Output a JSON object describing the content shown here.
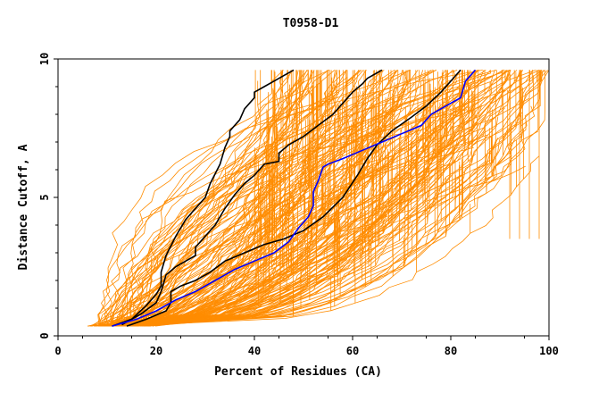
{
  "chart_data": {
    "type": "line",
    "title": "T0958-D1",
    "xlabel": "Percent of Residues (CA)",
    "ylabel": "Distance Cutoff, A",
    "xlim": [
      0,
      100
    ],
    "ylim": [
      0,
      10
    ],
    "x_ticks": [
      "0",
      "20",
      "40",
      "60",
      "80",
      "100"
    ],
    "y_ticks": [
      "0",
      "5",
      "10"
    ],
    "grid": false,
    "background_series_color": "#ff8c00",
    "background_series_count": 180,
    "series": [
      {
        "color": "#000000",
        "x": [
          11,
          15,
          18,
          20,
          21,
          21,
          22,
          24,
          26,
          28,
          30,
          31,
          33,
          34,
          35,
          35,
          37,
          38,
          40,
          40,
          42,
          44,
          46,
          48
        ],
        "y": [
          0.35,
          0.6,
          1.1,
          1.5,
          1.8,
          2.3,
          2.9,
          3.6,
          4.2,
          4.6,
          5.0,
          5.5,
          6.2,
          6.8,
          7.2,
          7.4,
          7.8,
          8.2,
          8.6,
          8.8,
          9.0,
          9.2,
          9.4,
          9.6
        ]
      },
      {
        "color": "#000000",
        "x": [
          13,
          17,
          20,
          21,
          22,
          24,
          26,
          28,
          28,
          30,
          32,
          34,
          36,
          38,
          40,
          42,
          45,
          45,
          47,
          50,
          53,
          56,
          58,
          60,
          62,
          63,
          65,
          66
        ],
        "y": [
          0.4,
          0.8,
          1.2,
          1.6,
          2.2,
          2.5,
          2.7,
          2.9,
          3.2,
          3.6,
          4.0,
          4.6,
          5.1,
          5.5,
          5.8,
          6.2,
          6.3,
          6.6,
          6.9,
          7.2,
          7.6,
          8.0,
          8.4,
          8.8,
          9.1,
          9.3,
          9.5,
          9.6
        ]
      },
      {
        "color": "#000000",
        "x": [
          14,
          18,
          22,
          23,
          23,
          25,
          28,
          31,
          34,
          38,
          42,
          46,
          50,
          54,
          58,
          61,
          63,
          65,
          68,
          72,
          75,
          78,
          80,
          82
        ],
        "y": [
          0.35,
          0.6,
          0.9,
          1.2,
          1.6,
          1.8,
          2.0,
          2.3,
          2.7,
          3.0,
          3.3,
          3.5,
          3.8,
          4.3,
          5.0,
          5.8,
          6.4,
          6.9,
          7.4,
          7.9,
          8.3,
          8.8,
          9.2,
          9.6
        ]
      },
      {
        "color": "#0000ff",
        "x": [
          11,
          16,
          20,
          24,
          28,
          32,
          36,
          40,
          44,
          47,
          49,
          51,
          52,
          52,
          53,
          54,
          55,
          58,
          62,
          66,
          70,
          74,
          76,
          78,
          80,
          82,
          83,
          85
        ],
        "y": [
          0.35,
          0.6,
          0.9,
          1.3,
          1.6,
          2.0,
          2.4,
          2.7,
          3.0,
          3.4,
          3.9,
          4.3,
          4.7,
          5.2,
          5.6,
          6.1,
          6.2,
          6.4,
          6.7,
          7.0,
          7.3,
          7.6,
          8.0,
          8.2,
          8.4,
          8.6,
          9.2,
          9.6
        ]
      }
    ]
  }
}
